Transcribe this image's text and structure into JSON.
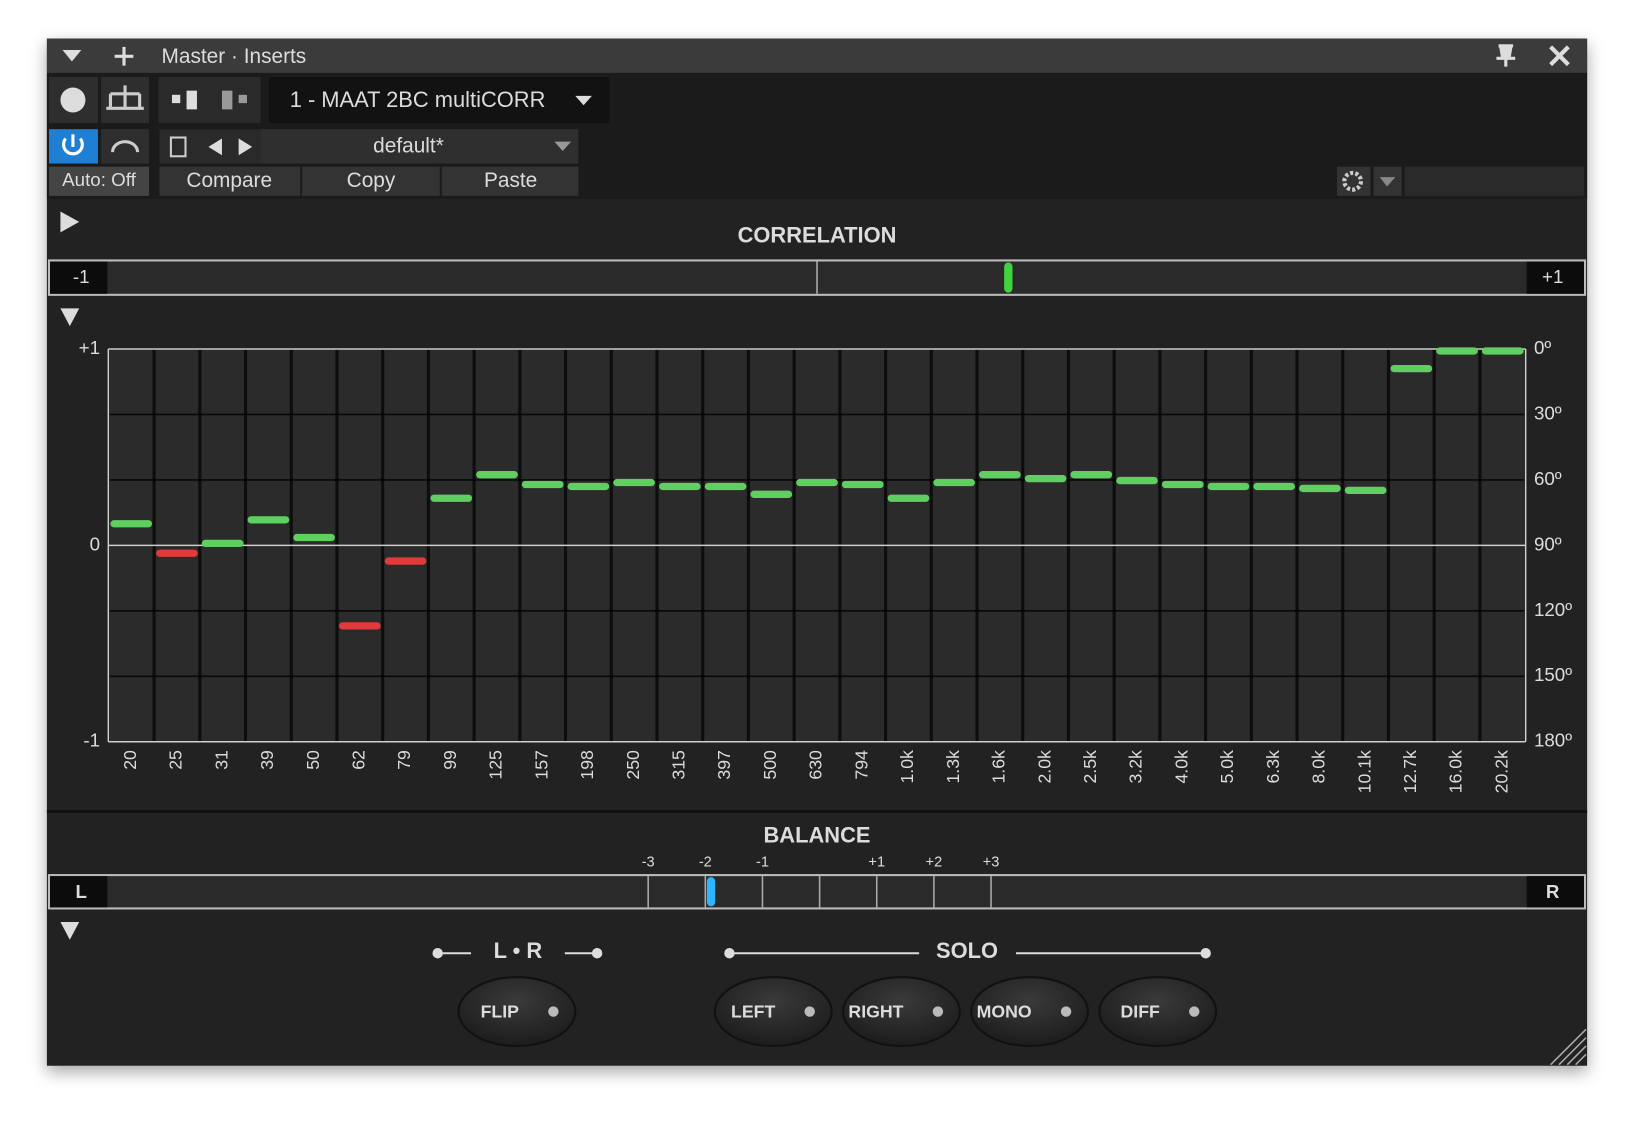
{
  "window": {
    "title": "Master · Inserts"
  },
  "toolbar": {
    "plugin_name": "1 - MAAT 2BC multiCORR",
    "preset": "default*",
    "automation": "Auto: Off",
    "compare": "Compare",
    "copy": "Copy",
    "paste": "Paste"
  },
  "correlation": {
    "title": "CORRELATION",
    "value": 0.27,
    "lim": [
      -1,
      1
    ],
    "lim_labels": [
      "-1",
      "+1"
    ]
  },
  "chart_data": {
    "type": "band-meter",
    "categories": [
      "20",
      "25",
      "31",
      "39",
      "50",
      "62",
      "79",
      "99",
      "125",
      "157",
      "198",
      "250",
      "315",
      "397",
      "500",
      "630",
      "794",
      "1.0k",
      "1.3k",
      "1.6k",
      "2.0k",
      "2.5k",
      "3.2k",
      "4.0k",
      "5.0k",
      "6.3k",
      "8.0k",
      "10.1k",
      "12.7k",
      "16.0k",
      "20.2k"
    ],
    "values": [
      0.11,
      -0.04,
      0.01,
      0.13,
      0.04,
      -0.41,
      -0.08,
      0.24,
      0.36,
      0.31,
      0.3,
      0.32,
      0.3,
      0.3,
      0.26,
      0.32,
      0.31,
      0.24,
      0.32,
      0.36,
      0.34,
      0.36,
      0.33,
      0.31,
      0.3,
      0.3,
      0.29,
      0.28,
      0.9,
      0.99,
      0.99
    ],
    "color": "#5fd05f",
    "negative_color": "#e03a3a",
    "ylim": [
      -1,
      1
    ],
    "yticks": [
      {
        "value": 1,
        "label": "+1"
      },
      0,
      -1
    ],
    "y2lim": [
      180,
      0
    ],
    "y2ticks": [
      {
        "value": 0,
        "label": "0º"
      },
      {
        "value": 30,
        "label": "30º"
      },
      {
        "value": 60,
        "label": "60º"
      },
      {
        "value": 90,
        "label": "90º"
      },
      {
        "value": 120,
        "label": "120º"
      },
      {
        "value": 150,
        "label": "150º"
      },
      {
        "value": 180,
        "label": "180º"
      }
    ],
    "grid": true
  },
  "balance": {
    "title": "BALANCE",
    "value": -1.9,
    "left_label": "L",
    "right_label": "R",
    "ticks": [
      -3,
      -2,
      -1,
      {
        "value": 1,
        "label": "+1"
      },
      {
        "value": 2,
        "label": "+2"
      },
      {
        "value": 3,
        "label": "+3"
      }
    ]
  },
  "controls": {
    "lr_label": "L • R",
    "flip": "FLIP",
    "solo_label": "SOLO",
    "solo_buttons": [
      "LEFT",
      "RIGHT",
      "MONO",
      "DIFF"
    ]
  }
}
